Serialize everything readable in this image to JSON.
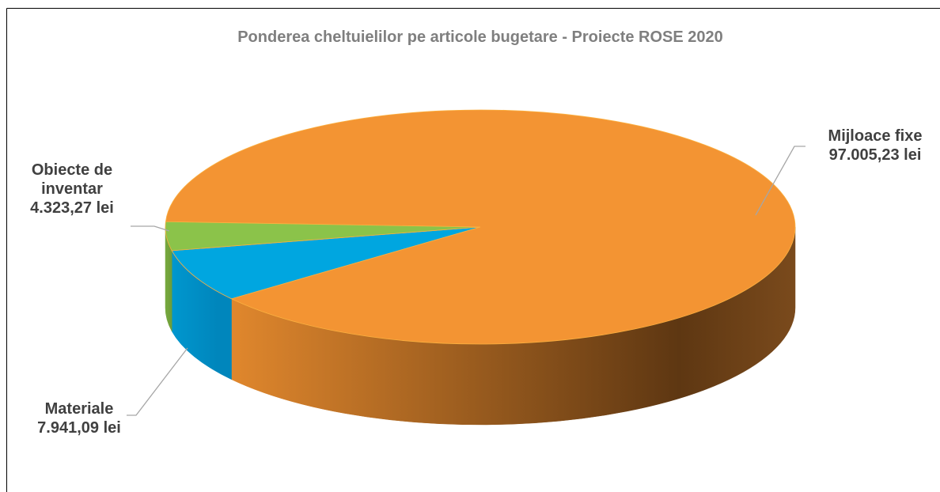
{
  "chart_data": {
    "type": "pie",
    "title": "Ponderea cheltuielilor pe articole bugetare - Proiecte ROSE 2020",
    "categories": [
      "Mijloace fixe",
      "Materiale",
      "Obiecte de inventar"
    ],
    "values": [
      97005.23,
      7941.09,
      4323.27
    ],
    "value_labels": [
      "97.005,23 lei",
      "7.941,09 lei",
      "4.323,27 lei"
    ],
    "colors": [
      "#f39433",
      "#00a6e0",
      "#8bc34a"
    ]
  }
}
